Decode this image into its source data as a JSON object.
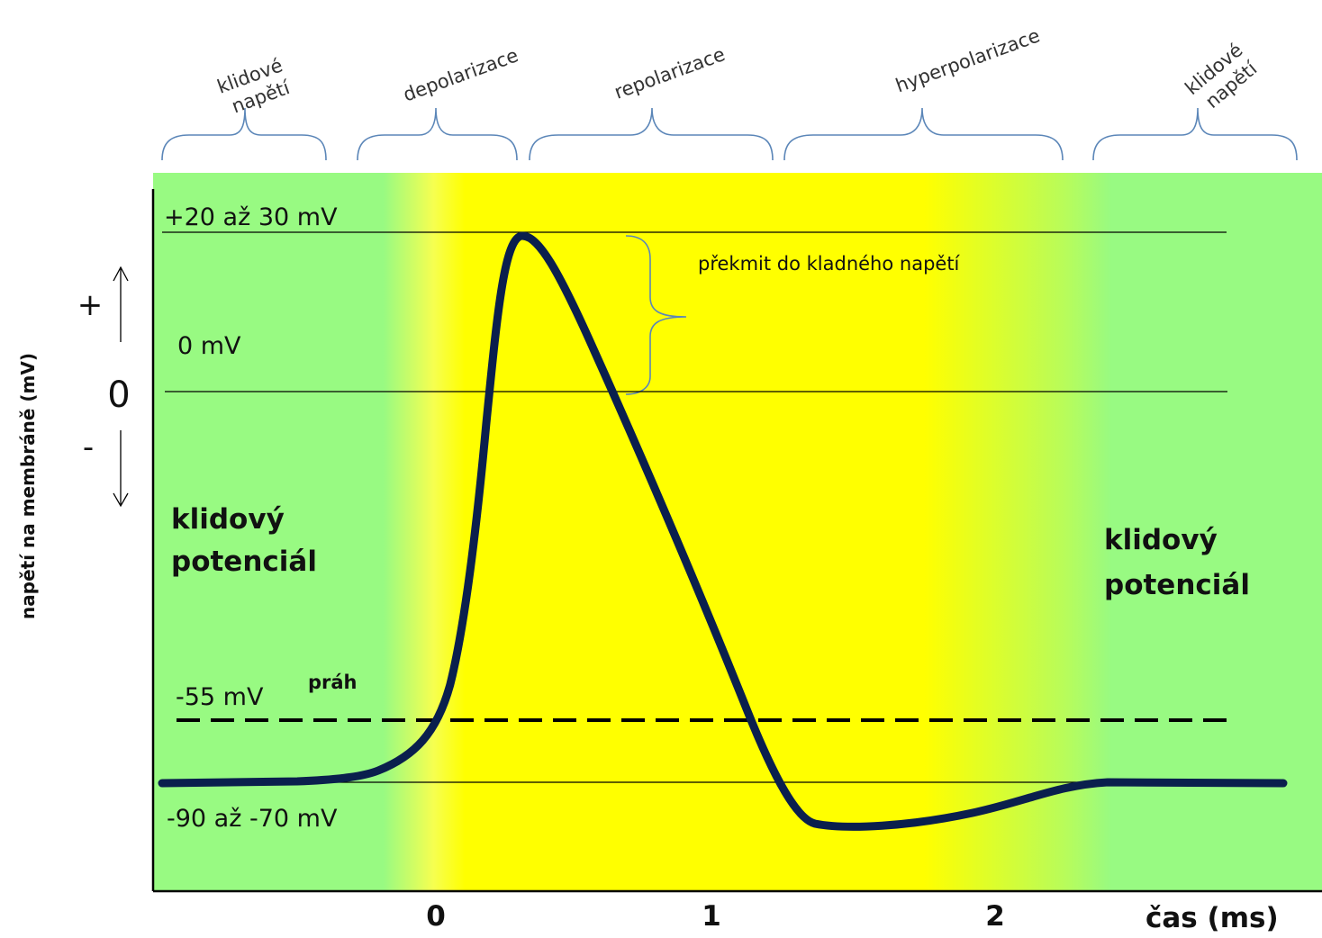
{
  "phases": [
    {
      "label_lines": [
        "klidové",
        "napětí"
      ]
    },
    {
      "label_lines": [
        "depolarizace"
      ]
    },
    {
      "label_lines": [
        "repolarizace"
      ]
    },
    {
      "label_lines": [
        "hyperpolarizace"
      ]
    },
    {
      "label_lines": [
        "klidové",
        "napětí"
      ]
    }
  ],
  "levels": {
    "peak": "+20 až 30 mV",
    "zero": "0 mV",
    "threshold": "-55 mV",
    "threshold_name": "práh",
    "rest": "-90 až -70 mV"
  },
  "overshoot_label": "překmit do kladného napětí",
  "axes": {
    "y_label": "napětí na membráně (mV)",
    "y_plus": "+",
    "y_zero": "0",
    "y_minus": "-",
    "x_label": "čas (ms)",
    "x_ticks": [
      "0",
      "1",
      "2"
    ]
  },
  "region_labels": {
    "left": [
      "klidový",
      "potenciál"
    ],
    "right": [
      "klidový",
      "potenciál"
    ]
  },
  "colors": {
    "resting_zone": "#98fa82",
    "active_zone": "#ffff00",
    "curve": "#0a1f4d",
    "brace": "#5b86b8"
  }
}
